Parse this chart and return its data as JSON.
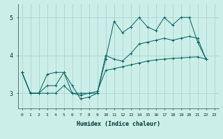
{
  "xlabel": "Humidex (Indice chaleur)",
  "ylabel": "",
  "background_color": "#cceee8",
  "grid_color": "#aad4ce",
  "line_color": "#006060",
  "xlim": [
    -0.5,
    23.5
  ],
  "ylim": [
    2.6,
    5.35
  ],
  "yticks": [
    3,
    4,
    5
  ],
  "xtick_labels": [
    "0",
    "1",
    "2",
    "3",
    "4",
    "5",
    "6",
    "7",
    "8",
    "9",
    "10",
    "11",
    "12",
    "13",
    "14",
    "15",
    "16",
    "17",
    "18",
    "19",
    "20",
    "21",
    "22",
    "23"
  ],
  "xticks": [
    0,
    1,
    2,
    3,
    4,
    5,
    6,
    7,
    8,
    9,
    10,
    11,
    12,
    13,
    14,
    15,
    16,
    17,
    18,
    19,
    20,
    21,
    22,
    23
  ],
  "series": [
    [
      3.55,
      3.0,
      3.0,
      3.2,
      3.2,
      3.55,
      3.2,
      2.85,
      2.9,
      3.0,
      3.9,
      4.9,
      4.6,
      4.75,
      5.0,
      4.75,
      4.65,
      5.0,
      4.8,
      5.0,
      5.0,
      4.35,
      3.9
    ],
    [
      3.55,
      3.0,
      3.0,
      3.5,
      3.55,
      3.55,
      3.0,
      2.95,
      3.0,
      3.0,
      4.0,
      3.9,
      3.85,
      4.05,
      4.3,
      4.35,
      4.4,
      4.45,
      4.4,
      4.45,
      4.5,
      4.45,
      3.9
    ],
    [
      3.55,
      3.0,
      3.0,
      3.0,
      3.0,
      3.2,
      3.0,
      3.0,
      3.0,
      3.05,
      3.6,
      3.65,
      3.7,
      3.75,
      3.8,
      3.85,
      3.88,
      3.9,
      3.92,
      3.93,
      3.95,
      3.96,
      3.9
    ]
  ],
  "x_values": [
    0,
    1,
    2,
    3,
    4,
    5,
    6,
    7,
    8,
    9,
    10,
    11,
    12,
    13,
    14,
    15,
    16,
    17,
    18,
    19,
    20,
    21,
    22
  ],
  "figsize": [
    3.2,
    2.0
  ],
  "dpi": 100
}
